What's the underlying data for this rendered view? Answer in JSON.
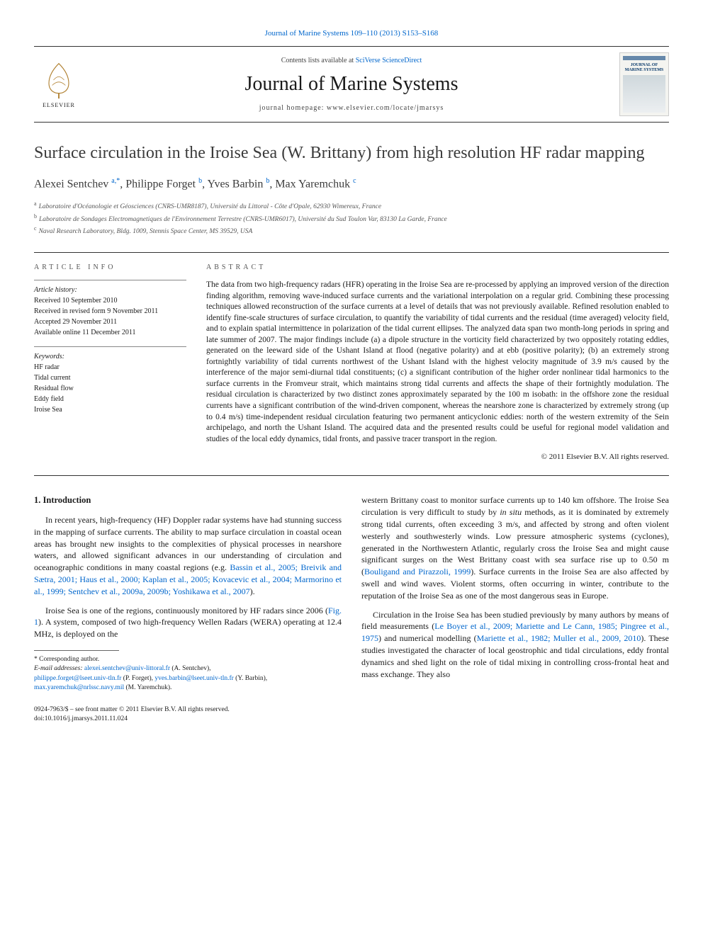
{
  "top_link": {
    "prefix": "",
    "journal": "Journal of Marine Systems 109–110 (2013) S153–S168"
  },
  "header": {
    "contents_prefix": "Contents lists available at ",
    "contents_link": "SciVerse ScienceDirect",
    "journal_name": "Journal of Marine Systems",
    "homepage_label": "journal homepage: www.elsevier.com/locate/jmarsys",
    "elsevier_label": "ELSEVIER",
    "cover_title": "JOURNAL OF MARINE SYSTEMS"
  },
  "article": {
    "title": "Surface circulation in the Iroise Sea (W. Brittany) from high resolution HF radar mapping",
    "authors_html": "Alexei Sentchev ",
    "authors": [
      {
        "name": "Alexei Sentchev ",
        "sup": "a,",
        "star": "*"
      },
      {
        "name": ", Philippe Forget ",
        "sup": "b"
      },
      {
        "name": ", Yves Barbin ",
        "sup": "b"
      },
      {
        "name": ", Max Yaremchuk ",
        "sup": "c"
      }
    ],
    "affiliations": [
      {
        "sup": "a",
        "text": "Laboratoire d'Océanologie et Géosciences (CNRS-UMR8187), Université du Littoral - Côte d'Opale, 62930 Wimereux, France"
      },
      {
        "sup": "b",
        "text": "Laboratoire de Sondages Electromagnetiques de l'Environnement Terrestre (CNRS-UMR6017), Université du Sud Toulon Var, 83130 La Garde, France"
      },
      {
        "sup": "c",
        "text": "Naval Research Laboratory, Bldg. 1009, Stennis Space Center, MS 39529, USA"
      }
    ]
  },
  "info": {
    "article_info_label": "ARTICLE INFO",
    "history_label": "Article history:",
    "history": [
      "Received 10 September 2010",
      "Received in revised form 9 November 2011",
      "Accepted 29 November 2011",
      "Available online 11 December 2011"
    ],
    "keywords_label": "Keywords:",
    "keywords": [
      "HF radar",
      "Tidal current",
      "Residual flow",
      "Eddy field",
      "Iroise Sea"
    ]
  },
  "abstract": {
    "label": "ABSTRACT",
    "text": "The data from two high-frequency radars (HFR) operating in the Iroise Sea are re-processed by applying an improved version of the direction finding algorithm, removing wave-induced surface currents and the variational interpolation on a regular grid. Combining these processing techniques allowed reconstruction of the surface currents at a level of details that was not previously available. Refined resolution enabled to identify fine-scale structures of surface circulation, to quantify the variability of tidal currents and the residual (time averaged) velocity field, and to explain spatial intermittence in polarization of the tidal current ellipses. The analyzed data span two month-long periods in spring and late summer of 2007. The major findings include (a) a dipole structure in the vorticity field characterized by two oppositely rotating eddies, generated on the leeward side of the Ushant Island at flood (negative polarity) and at ebb (positive polarity); (b) an extremely strong fortnightly variability of tidal currents northwest of the Ushant Island with the highest velocity magnitude of 3.9 m/s caused by the interference of the major semi-diurnal tidal constituents; (c) a significant contribution of the higher order nonlinear tidal harmonics to the surface currents in the Fromveur strait, which maintains strong tidal currents and affects the shape of their fortnightly modulation. The residual circulation is characterized by two distinct zones approximately separated by the 100 m isobath: in the offshore zone the residual currents have a significant contribution of the wind-driven component, whereas the nearshore zone is characterized by extremely strong (up to 0.4 m/s) time-independent residual circulation featuring two permanent anticyclonic eddies: north of the western extremity of the Sein archipelago, and north the Ushant Island. The acquired data and the presented results could be useful for regional model validation and studies of the local eddy dynamics, tidal fronts, and passive tracer transport in the region.",
    "copyright": "© 2011 Elsevier B.V. All rights reserved."
  },
  "body": {
    "section1_heading": "1. Introduction",
    "p1a": "In recent years, high-frequency (HF) Doppler radar systems have had stunning success in the mapping of surface currents. The ability to map surface circulation in coastal ocean areas has brought new insights to the complexities of physical processes in nearshore waters, and allowed significant advances in our understanding of circulation and oceanographic conditions in many coastal regions (e.g. ",
    "p1_ref1": "Bassin et al., 2005; Breivik and Sætra, 2001; Haus et al., 2000; Kaplan et al., 2005; Kovacevic et al., 2004; Marmorino et al., 1999; Sentchev et al., 2009a, 2009b; Yoshikawa et al., 2007",
    "p1b": ").",
    "p2a": "Iroise Sea is one of the regions, continuously monitored by HF radars since 2006 (",
    "p2_ref1": "Fig. 1",
    "p2b": "). A system, composed of two high-frequency Wellen Radars (WERA) operating at 12.4 MHz, is deployed on the",
    "p3a": "western Brittany coast to monitor surface currents up to 140 km offshore. The Iroise Sea circulation is very difficult to study by ",
    "p3_italic": "in situ",
    "p3b": " methods, as it is dominated by extremely strong tidal currents, often exceeding 3 m/s, and affected by strong and often violent westerly and southwesterly winds. Low pressure atmospheric systems (cyclones), generated in the Northwestern Atlantic, regularly cross the Iroise Sea and might cause significant surges on the West Brittany coast with sea surface rise up to 0.50 m (",
    "p3_ref1": "Bouligand and Pirazzoli, 1999",
    "p3c": "). Surface currents in the Iroise Sea are also affected by swell and wind waves. Violent storms, often occurring in winter, contribute to the reputation of the Iroise Sea as one of the most dangerous seas in Europe.",
    "p4a": "Circulation in the Iroise Sea has been studied previously by many authors by means of field measurements (",
    "p4_ref1": "Le Boyer et al., 2009; Mariette and Le Cann, 1985; Pingree et al., 1975",
    "p4b": ") and numerical modelling (",
    "p4_ref2": "Mariette et al., 1982; Muller et al., 2009, 2010",
    "p4c": "). These studies investigated the character of local geostrophic and tidal circulations, eddy frontal dynamics and shed light on the role of tidal mixing in controlling cross-frontal heat and mass exchange. They also"
  },
  "footnotes": {
    "corr": "Corresponding author.",
    "email_label": "E-mail addresses:",
    "emails": [
      {
        "addr": "alexei.sentchev@univ-littoral.fr",
        "who": " (A. Sentchev),"
      },
      {
        "addr": "philippe.forget@lseet.univ-tln.fr",
        "who": " (P. Forget), "
      },
      {
        "addr": "yves.barbin@lseet.univ-tln.fr",
        "who": " (Y. Barbin),"
      },
      {
        "addr": "max.yaremchuk@nrlssc.navy.mil",
        "who": " (M. Yaremchuk)."
      }
    ]
  },
  "footer": {
    "left1": "0924-7963/$ – see front matter © 2011 Elsevier B.V. All rights reserved.",
    "left2": "doi:10.1016/j.jmarsys.2011.11.024"
  },
  "colors": {
    "link": "#0066cc",
    "text": "#1a1a1a",
    "muted": "#555555",
    "rule": "#333333"
  }
}
